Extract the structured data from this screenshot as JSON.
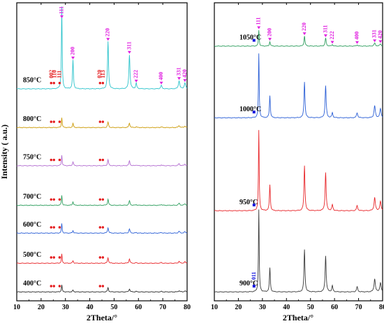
{
  "colors": {
    "rhombohedral": "#e41a1c",
    "cubic": "#e020e0",
    "monoclinic": "#1a1adf"
  },
  "chart_data": [
    {
      "type": "line",
      "panel": "left",
      "xlabel": "2Theta/°",
      "ylabel": "Intensity ( a.u.)",
      "xlim": [
        10,
        80
      ],
      "xticks": [
        10,
        20,
        30,
        40,
        50,
        60,
        70,
        80
      ],
      "series": [
        {
          "name": "400°C",
          "color": "#2b2b2b",
          "baseline": 0.0,
          "scale": 0.035,
          "peaks": [
            [
              28.5,
              0.7
            ],
            [
              33.1,
              0.18
            ],
            [
              47.5,
              0.4
            ],
            [
              56.3,
              0.3
            ],
            [
              59.1,
              0.05
            ],
            [
              69.4,
              0.05
            ],
            [
              76.7,
              0.12
            ],
            [
              79.1,
              0.1
            ]
          ],
          "markers": [
            {
              "x": 24.7,
              "symbol": "dot",
              "count": 2
            },
            {
              "x": 27.6,
              "symbol": "dot",
              "count": 1
            },
            {
              "x": 44.8,
              "symbol": "dot",
              "count": 2
            }
          ]
        },
        {
          "name": "500°C",
          "color": "#e8262a",
          "baseline": 0.1,
          "scale": 0.035,
          "peaks": [
            [
              28.5,
              0.9
            ],
            [
              33.1,
              0.25
            ],
            [
              47.5,
              0.55
            ],
            [
              56.3,
              0.42
            ],
            [
              59.1,
              0.06
            ],
            [
              69.4,
              0.07
            ],
            [
              76.7,
              0.18
            ],
            [
              79.1,
              0.14
            ]
          ],
          "markers": [
            {
              "x": 24.7,
              "symbol": "dot",
              "count": 2
            },
            {
              "x": 27.6,
              "symbol": "dot",
              "count": 1
            },
            {
              "x": 44.8,
              "symbol": "dot",
              "count": 2
            }
          ]
        },
        {
          "name": "600°C",
          "color": "#2b5fd6",
          "baseline": 0.205,
          "scale": 0.035,
          "peaks": [
            [
              28.5,
              0.95
            ],
            [
              33.1,
              0.25
            ],
            [
              47.5,
              0.55
            ],
            [
              56.3,
              0.42
            ],
            [
              59.1,
              0.06
            ],
            [
              69.4,
              0.07
            ],
            [
              76.7,
              0.18
            ],
            [
              79.1,
              0.14
            ]
          ],
          "markers": [
            {
              "x": 24.7,
              "symbol": "dot",
              "count": 2
            },
            {
              "x": 27.6,
              "symbol": "dot",
              "count": 1
            },
            {
              "x": 44.8,
              "symbol": "dot",
              "count": 2
            }
          ]
        },
        {
          "name": "700°C",
          "color": "#2e9e5e",
          "baseline": 0.302,
          "scale": 0.035,
          "peaks": [
            [
              28.5,
              1.0
            ],
            [
              33.1,
              0.36
            ],
            [
              47.5,
              0.6
            ],
            [
              56.3,
              0.45
            ],
            [
              59.1,
              0.07
            ],
            [
              69.4,
              0.08
            ],
            [
              76.7,
              0.2
            ],
            [
              79.1,
              0.15
            ]
          ],
          "markers": [
            {
              "x": 24.7,
              "symbol": "dot",
              "count": 2
            },
            {
              "x": 27.6,
              "symbol": "dot",
              "count": 1
            },
            {
              "x": 44.8,
              "symbol": "dot",
              "count": 2
            }
          ]
        },
        {
          "name": "750°C",
          "color": "#b26cd0",
          "baseline": 0.44,
          "scale": 0.035,
          "peaks": [
            [
              28.5,
              1.05
            ],
            [
              33.1,
              0.4
            ],
            [
              47.5,
              0.6
            ],
            [
              56.3,
              0.47
            ],
            [
              59.1,
              0.08
            ],
            [
              69.4,
              0.08
            ],
            [
              76.7,
              0.2
            ],
            [
              79.1,
              0.16
            ]
          ],
          "markers": [
            {
              "x": 24.7,
              "symbol": "dot",
              "count": 2
            },
            {
              "x": 27.6,
              "symbol": "dot",
              "count": 1
            },
            {
              "x": 44.8,
              "symbol": "dot",
              "count": 2
            }
          ]
        },
        {
          "name": "800°C",
          "color": "#cc9a06",
          "baseline": 0.573,
          "scale": 0.035,
          "peaks": [
            [
              28.5,
              1.0
            ],
            [
              33.1,
              0.4
            ],
            [
              47.5,
              0.55
            ],
            [
              56.3,
              0.45
            ],
            [
              59.1,
              0.08
            ],
            [
              69.4,
              0.07
            ],
            [
              76.7,
              0.2
            ],
            [
              79.1,
              0.15
            ]
          ],
          "markers": [
            {
              "x": 24.7,
              "symbol": "dot",
              "count": 2
            },
            {
              "x": 27.6,
              "symbol": "dot",
              "count": 1
            },
            {
              "x": 44.8,
              "symbol": "dot",
              "count": 2
            }
          ]
        },
        {
          "name": "850°C",
          "color": "#2ec4cc",
          "baseline": 0.708,
          "scale": 0.035,
          "peaks": [
            [
              28.5,
              8.2
            ],
            [
              33.1,
              2.85
            ],
            [
              47.5,
              4.7
            ],
            [
              56.3,
              3.4
            ],
            [
              59.1,
              0.55
            ],
            [
              69.4,
              0.35
            ],
            [
              76.7,
              0.8
            ],
            [
              79.1,
              0.6
            ]
          ],
          "markers": [
            {
              "x": 24.7,
              "symbol": "dot",
              "count": 2
            },
            {
              "x": 27.6,
              "symbol": "dot",
              "count": 1
            },
            {
              "x": 44.8,
              "symbol": "dot",
              "count": 2
            }
          ]
        }
      ],
      "annotations": [
        {
          "text": "111",
          "x": 28.5,
          "phase": "cubic"
        },
        {
          "text": "200",
          "x": 33.1,
          "phase": "cubic"
        },
        {
          "text": "220",
          "x": 47.5,
          "phase": "cubic"
        },
        {
          "text": "311",
          "x": 56.3,
          "phase": "cubic"
        },
        {
          "text": "222",
          "x": 59.1,
          "phase": "cubic"
        },
        {
          "text": "400",
          "x": 69.4,
          "phase": "cubic"
        },
        {
          "text": "331",
          "x": 76.7,
          "phase": "cubic"
        },
        {
          "text": "420",
          "x": 79.1,
          "phase": "cubic"
        },
        {
          "text": "002",
          "x": 24.3,
          "phase": "rhombohedral"
        },
        {
          "text": "110",
          "x": 25.6,
          "phase": "rhombohedral"
        },
        {
          "text": "111",
          "x": 27.6,
          "phase": "rhombohedral"
        },
        {
          "text": "020",
          "x": 44.2,
          "phase": "rhombohedral"
        },
        {
          "text": "113",
          "x": 45.6,
          "phase": "rhombohedral"
        }
      ]
    },
    {
      "type": "line",
      "panel": "right",
      "xlabel": "2Theta/°",
      "ylabel": "",
      "xlim": [
        10,
        80
      ],
      "xticks": [
        10,
        20,
        30,
        40,
        50,
        60,
        70,
        80
      ],
      "series": [
        {
          "name": "900°C",
          "color": "#3a3a3a",
          "baseline": 0.0,
          "scale": 0.035,
          "peaks": [
            [
              28.5,
              8.2
            ],
            [
              33.1,
              2.4
            ],
            [
              47.5,
              4.2
            ],
            [
              56.3,
              3.6
            ],
            [
              59.1,
              0.6
            ],
            [
              69.4,
              0.5
            ],
            [
              76.7,
              1.3
            ],
            [
              79.1,
              0.9
            ]
          ],
          "markers": [
            {
              "x": 26.5,
              "symbol": "square",
              "count": 1
            }
          ]
        },
        {
          "name": "950°C",
          "color": "#e8262a",
          "baseline": 0.283,
          "scale": 0.035,
          "peaks": [
            [
              28.5,
              8.0
            ],
            [
              33.1,
              2.6
            ],
            [
              47.5,
              4.5
            ],
            [
              56.3,
              3.8
            ],
            [
              59.1,
              0.6
            ],
            [
              69.4,
              0.5
            ],
            [
              76.7,
              1.3
            ],
            [
              79.1,
              0.9
            ]
          ],
          "markers": [
            {
              "x": 26.5,
              "symbol": "square",
              "count": 1
            }
          ]
        },
        {
          "name": "1000°C",
          "color": "#2b5fd6",
          "baseline": 0.607,
          "scale": 0.035,
          "peaks": [
            [
              28.5,
              6.4
            ],
            [
              33.1,
              2.2
            ],
            [
              47.5,
              3.6
            ],
            [
              56.3,
              3.2
            ],
            [
              59.1,
              0.5
            ],
            [
              69.4,
              0.5
            ],
            [
              76.7,
              1.2
            ],
            [
              79.1,
              0.9
            ]
          ],
          "markers": [
            {
              "x": 26.5,
              "symbol": "square",
              "count": 1
            }
          ]
        },
        {
          "name": "1050°C",
          "color": "#2e9e5e",
          "baseline": 0.857,
          "scale": 0.035,
          "peaks": [
            [
              28.5,
              1.6
            ],
            [
              33.1,
              0.45
            ],
            [
              47.5,
              1.0
            ],
            [
              56.3,
              0.8
            ],
            [
              59.1,
              0.15
            ],
            [
              69.4,
              0.12
            ],
            [
              76.7,
              0.3
            ],
            [
              79.1,
              0.22
            ]
          ],
          "markers": [
            {
              "x": 26.5,
              "symbol": "square",
              "count": 1
            }
          ]
        }
      ],
      "annotations": [
        {
          "text": "111",
          "x": 28.5,
          "phase": "cubic"
        },
        {
          "text": "200",
          "x": 33.1,
          "phase": "cubic"
        },
        {
          "text": "220",
          "x": 47.5,
          "phase": "cubic"
        },
        {
          "text": "311",
          "x": 56.3,
          "phase": "cubic"
        },
        {
          "text": "222",
          "x": 59.1,
          "phase": "cubic"
        },
        {
          "text": "400",
          "x": 69.4,
          "phase": "cubic"
        },
        {
          "text": "331",
          "x": 76.7,
          "phase": "cubic"
        },
        {
          "text": "420",
          "x": 79.1,
          "phase": "cubic"
        },
        {
          "text": "011",
          "x": 26.5,
          "phase": "monoclinic"
        }
      ]
    }
  ]
}
